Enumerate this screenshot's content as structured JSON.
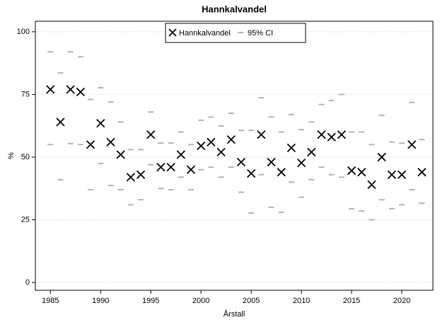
{
  "chart_data": {
    "type": "scatter",
    "title": "Hannkalvandel",
    "x_label": "Årstall",
    "y_label": "%",
    "x": [
      1985,
      1986,
      1987,
      1988,
      1989,
      1990,
      1991,
      1992,
      1993,
      1994,
      1995,
      1996,
      1997,
      1998,
      1999,
      2000,
      2001,
      2002,
      2003,
      2004,
      2005,
      2006,
      2007,
      2008,
      2009,
      2010,
      2011,
      2012,
      2013,
      2014,
      2015,
      2016,
      2017,
      2018,
      2019,
      2020,
      2021,
      2022
    ],
    "series": [
      {
        "name": "Hannkalvandel",
        "color": "#000000",
        "values": [
          77,
          64,
          77,
          76,
          55,
          63.5,
          56,
          51,
          42,
          43,
          59,
          46,
          46,
          51,
          45,
          54.5,
          56,
          52,
          57,
          48,
          43.5,
          59,
          48,
          44,
          53.7,
          47.7,
          52,
          59,
          58,
          59,
          44.6,
          44,
          39,
          50,
          43,
          43,
          55,
          44
        ]
      },
      {
        "name": "95% CI",
        "color": "#b3b3b3",
        "lower": [
          55,
          41,
          55.4,
          55,
          37,
          47.5,
          38.7,
          37,
          31,
          33,
          47,
          37.5,
          37,
          42,
          37,
          45,
          46,
          42,
          46,
          36,
          27.7,
          43,
          30,
          28,
          40,
          34,
          41,
          46,
          43,
          42,
          29.4,
          28.5,
          25,
          33,
          29.4,
          31,
          37,
          31.6
        ],
        "upper": [
          92,
          83.6,
          92,
          90,
          73,
          77.7,
          72,
          64,
          53,
          53,
          68,
          55.6,
          55.6,
          60,
          55,
          64.7,
          66,
          62.4,
          67.5,
          60.7,
          60.7,
          73.7,
          66,
          60,
          67,
          61,
          64,
          71,
          72.6,
          75,
          60,
          60,
          55,
          66.7,
          56,
          55.6,
          71.8,
          57
        ]
      }
    ],
    "xlim": [
      1983.5,
      2023.1
    ],
    "ylim": [
      -3.1,
      104.2
    ],
    "xticks": [
      1985,
      1990,
      1995,
      2000,
      2005,
      2010,
      2015,
      2020
    ],
    "yticks": [
      0,
      25,
      50,
      75,
      100
    ],
    "grid": true,
    "legend": "top"
  }
}
